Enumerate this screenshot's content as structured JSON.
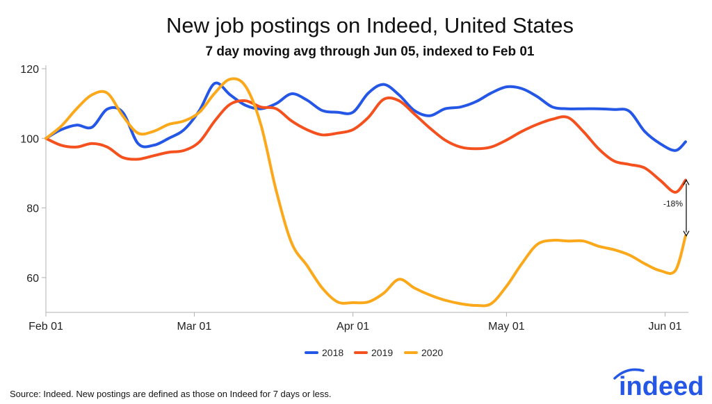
{
  "chart_data": {
    "type": "line",
    "title": "New job postings on Indeed, United States",
    "subtitle": "7 day moving avg through Jun 05, indexed to Feb 01",
    "x_ticks": [
      "Feb 01",
      "Mar 01",
      "Apr 01",
      "May 01",
      "Jun 01"
    ],
    "y_ticks": [
      60,
      80,
      100,
      120
    ],
    "ylim": [
      50,
      121
    ],
    "x_range": [
      "Feb 01",
      "Jun 05"
    ],
    "grid": false,
    "legend_position": "bottom-center",
    "x": [
      "Feb 01",
      "Feb 04",
      "Feb 07",
      "Feb 10",
      "Feb 13",
      "Feb 16",
      "Feb 19",
      "Feb 22",
      "Feb 25",
      "Feb 28",
      "Mar 02",
      "Mar 05",
      "Mar 08",
      "Mar 11",
      "Mar 14",
      "Mar 17",
      "Mar 20",
      "Mar 23",
      "Mar 26",
      "Mar 29",
      "Apr 01",
      "Apr 04",
      "Apr 07",
      "Apr 10",
      "Apr 13",
      "Apr 16",
      "Apr 19",
      "Apr 22",
      "Apr 25",
      "Apr 28",
      "May 01",
      "May 04",
      "May 07",
      "May 10",
      "May 13",
      "May 16",
      "May 19",
      "May 22",
      "May 25",
      "May 28",
      "May 31",
      "Jun 03",
      "Jun 05"
    ],
    "series": [
      {
        "name": "2018",
        "color": "#2557e6",
        "values": [
          100,
          102.5,
          103.8,
          103.2,
          108.4,
          107.5,
          98.5,
          98,
          100,
          102.5,
          108,
          115.8,
          112.5,
          109.5,
          108.5,
          110,
          112.8,
          111,
          108,
          107.5,
          107.5,
          113,
          115.5,
          112.5,
          108,
          106.5,
          108.5,
          109,
          110.5,
          113,
          114.8,
          114.3,
          112,
          109,
          108.5,
          108.5,
          108.5,
          108.3,
          107.8,
          102,
          98.5,
          96.5,
          99
        ]
      },
      {
        "name": "2019",
        "color": "#f4511e",
        "values": [
          100,
          98,
          97.5,
          98.5,
          97.5,
          94.5,
          94,
          95,
          96,
          96.5,
          99,
          105,
          109.8,
          110.8,
          109,
          108.5,
          105,
          102.5,
          101,
          101.5,
          102.5,
          106,
          111.2,
          110.8,
          107,
          103,
          99.5,
          97.5,
          97,
          97.5,
          99.5,
          102,
          104,
          105.5,
          106,
          102,
          97,
          93.5,
          92.5,
          91.5,
          88,
          84.5,
          88
        ]
      },
      {
        "name": "2020",
        "color": "#fba81a",
        "values": [
          100,
          103.5,
          108.5,
          112.5,
          113,
          106.5,
          101.5,
          102,
          104,
          105,
          107.5,
          113,
          117,
          115,
          104,
          85,
          70,
          63.5,
          57,
          53,
          52.8,
          53,
          55.5,
          59.5,
          57,
          55,
          53.5,
          52.5,
          52,
          52.5,
          57.5,
          64,
          69.5,
          70.7,
          70.5,
          70.5,
          69,
          68,
          66.5,
          64,
          62,
          62,
          72
        ]
      }
    ],
    "annotation": {
      "label": "-18%",
      "x": "Jun 05",
      "from": 88,
      "to": 72
    }
  },
  "source_text": "Source: Indeed. New postings are defined as those on Indeed for 7 days or less.",
  "logo_text": "indeed",
  "colors": {
    "axis": "#b0b0b0",
    "logo": "#2557e6"
  }
}
